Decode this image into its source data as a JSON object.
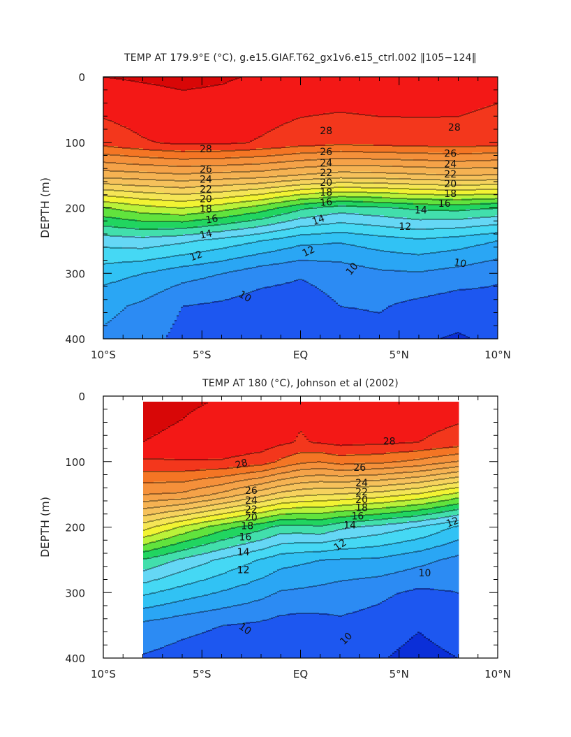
{
  "chart_data": [
    {
      "type": "heatmap",
      "subtype": "filled-contour",
      "title": "TEMP AT 179.9°E (°C), g.e15.GIAF.T62_gx1v6.e15_ctrl.002 ‖105−124‖",
      "xlabel": "",
      "ylabel": "DEPTH (m)",
      "xlim": [
        -10,
        10
      ],
      "ylim": [
        400,
        0
      ],
      "x_ticks": [
        "10°S",
        "5°S",
        "EQ",
        "5°N",
        "10°N"
      ],
      "y_ticks": [
        "0",
        "100",
        "200",
        "300",
        "400"
      ],
      "contour_interval": 1,
      "data_extent": [
        -10,
        10
      ],
      "x_grid": [
        -10,
        -8,
        -6,
        -4,
        -2,
        0,
        2,
        4,
        6,
        8,
        10
      ],
      "depth_grid": [
        0,
        100,
        150,
        200,
        250,
        300,
        350,
        400
      ],
      "temperature": [
        [
          29.0,
          29.1,
          29.2,
          29.1,
          28.9,
          28.8,
          28.8,
          28.9,
          28.8,
          28.6,
          28.4
        ],
        [
          27.4,
          27.9,
          28.2,
          28.2,
          27.9,
          27.5,
          27.3,
          27.4,
          27.5,
          27.6,
          27.4
        ],
        [
          23.4,
          23.6,
          23.8,
          23.6,
          23.4,
          22.9,
          22.5,
          22.6,
          22.8,
          23.0,
          22.9
        ],
        [
          17.9,
          18.6,
          19.0,
          18.4,
          17.5,
          16.2,
          15.5,
          15.8,
          16.2,
          16.3,
          16.0
        ],
        [
          14.4,
          14.6,
          14.2,
          13.6,
          13.0,
          12.3,
          12.1,
          12.5,
          12.8,
          12.5,
          12.0
        ],
        [
          12.4,
          12.0,
          11.4,
          11.0,
          10.4,
          10.1,
          10.4,
          10.8,
          10.9,
          10.6,
          10.2
        ],
        [
          11.3,
          10.8,
          10.0,
          9.8,
          9.5,
          9.5,
          10.0,
          10.1,
          9.7,
          9.4,
          9.6
        ],
        [
          10.8,
          10.4,
          9.7,
          9.5,
          9.3,
          9.2,
          9.4,
          9.6,
          9.1,
          8.9,
          9.2
        ]
      ],
      "labels": [
        {
          "text": "28",
          "x": -4.8,
          "y": 110,
          "rot": 0
        },
        {
          "text": "26",
          "x": -4.8,
          "y": 141,
          "rot": 0
        },
        {
          "text": "24",
          "x": -4.8,
          "y": 156,
          "rot": 0
        },
        {
          "text": "22",
          "x": -4.8,
          "y": 171,
          "rot": 0
        },
        {
          "text": "20",
          "x": -4.8,
          "y": 186,
          "rot": 0
        },
        {
          "text": "18",
          "x": -4.8,
          "y": 201,
          "rot": 0
        },
        {
          "text": "16",
          "x": -4.5,
          "y": 217,
          "rot": -10
        },
        {
          "text": "14",
          "x": -4.8,
          "y": 240,
          "rot": -12
        },
        {
          "text": "12",
          "x": -5.3,
          "y": 273,
          "rot": -20
        },
        {
          "text": "10",
          "x": -2.8,
          "y": 335,
          "rot": 30
        },
        {
          "text": "28",
          "x": 1.3,
          "y": 82,
          "rot": 0
        },
        {
          "text": "26",
          "x": 1.3,
          "y": 114,
          "rot": 0
        },
        {
          "text": "24",
          "x": 1.3,
          "y": 131,
          "rot": 0
        },
        {
          "text": "22",
          "x": 1.3,
          "y": 146,
          "rot": 0
        },
        {
          "text": "20",
          "x": 1.3,
          "y": 161,
          "rot": 0
        },
        {
          "text": "18",
          "x": 1.3,
          "y": 176,
          "rot": 0
        },
        {
          "text": "16",
          "x": 1.3,
          "y": 191,
          "rot": -5
        },
        {
          "text": "14",
          "x": 0.9,
          "y": 218,
          "rot": -20
        },
        {
          "text": "12",
          "x": 0.4,
          "y": 266,
          "rot": -25
        },
        {
          "text": "10",
          "x": 2.6,
          "y": 293,
          "rot": -50
        },
        {
          "text": "28",
          "x": 7.8,
          "y": 77,
          "rot": 0
        },
        {
          "text": "26",
          "x": 7.6,
          "y": 117,
          "rot": 0
        },
        {
          "text": "24",
          "x": 7.6,
          "y": 133,
          "rot": 0
        },
        {
          "text": "22",
          "x": 7.6,
          "y": 148,
          "rot": 0
        },
        {
          "text": "20",
          "x": 7.6,
          "y": 163,
          "rot": 0
        },
        {
          "text": "18",
          "x": 7.6,
          "y": 178,
          "rot": 0
        },
        {
          "text": "16",
          "x": 7.3,
          "y": 193,
          "rot": 0
        },
        {
          "text": "14",
          "x": 6.1,
          "y": 203,
          "rot": 0
        },
        {
          "text": "12",
          "x": 5.3,
          "y": 228,
          "rot": 0
        },
        {
          "text": "10",
          "x": 8.1,
          "y": 284,
          "rot": 10
        }
      ]
    },
    {
      "type": "heatmap",
      "subtype": "filled-contour",
      "title": "TEMP AT 180 (°C), Johnson et al (2002)",
      "xlabel": "",
      "ylabel": "DEPTH (m)",
      "xlim": [
        -10,
        10
      ],
      "ylim": [
        400,
        0
      ],
      "x_ticks": [
        "10°S",
        "5°S",
        "EQ",
        "5°N",
        "10°N"
      ],
      "y_ticks": [
        "0",
        "100",
        "200",
        "300",
        "400"
      ],
      "contour_interval": 1,
      "data_extent": [
        -8,
        8
      ],
      "depth_top": 8,
      "x_grid": [
        -8,
        -6,
        -4,
        -2,
        -1,
        0,
        1,
        2,
        4,
        6,
        8
      ],
      "depth_grid": [
        0,
        70,
        100,
        150,
        200,
        250,
        300,
        350,
        400
      ],
      "temperature": [
        [
          29.2,
          29.1,
          29.0,
          28.8,
          28.6,
          28.3,
          28.6,
          28.8,
          28.8,
          28.7,
          28.6
        ],
        [
          29.0,
          28.9,
          28.7,
          28.5,
          28.2,
          27.9,
          28.1,
          28.3,
          28.2,
          28.0,
          27.6
        ],
        [
          27.8,
          27.9,
          27.9,
          27.5,
          26.8,
          26.2,
          26.0,
          26.4,
          26.2,
          25.7,
          24.9
        ],
        [
          25.0,
          24.8,
          23.7,
          22.3,
          21.6,
          21.2,
          21.0,
          20.9,
          20.5,
          19.8,
          18.6
        ],
        [
          20.4,
          18.8,
          17.4,
          16.3,
          15.6,
          15.6,
          15.8,
          15.2,
          14.6,
          13.9,
          12.8
        ],
        [
          15.9,
          14.8,
          13.8,
          12.9,
          12.4,
          12.2,
          12.0,
          11.9,
          11.8,
          11.3,
          10.7
        ],
        [
          13.2,
          12.5,
          11.9,
          11.3,
          10.9,
          10.8,
          10.7,
          10.5,
          10.2,
          9.8,
          10.0
        ],
        [
          10.7,
          10.3,
          10.0,
          9.8,
          9.6,
          9.5,
          9.6,
          9.8,
          9.6,
          9.1,
          9.6
        ],
        [
          9.9,
          9.6,
          9.4,
          9.3,
          9.2,
          9.1,
          9.2,
          9.4,
          9.1,
          8.6,
          9.0
        ]
      ],
      "labels": [
        {
          "text": "28",
          "x": -3.0,
          "y": 103,
          "rot": -15
        },
        {
          "text": "26",
          "x": -2.5,
          "y": 144,
          "rot": 0
        },
        {
          "text": "24",
          "x": -2.5,
          "y": 159,
          "rot": 0
        },
        {
          "text": "22",
          "x": -2.5,
          "y": 173,
          "rot": 0
        },
        {
          "text": "20",
          "x": -2.5,
          "y": 185,
          "rot": 0
        },
        {
          "text": "18",
          "x": -2.7,
          "y": 198,
          "rot": 0
        },
        {
          "text": "16",
          "x": -2.8,
          "y": 215,
          "rot": 0
        },
        {
          "text": "14",
          "x": -2.9,
          "y": 238,
          "rot": 0
        },
        {
          "text": "12",
          "x": -2.9,
          "y": 265,
          "rot": 0
        },
        {
          "text": "10",
          "x": -2.8,
          "y": 355,
          "rot": 35
        },
        {
          "text": "28",
          "x": 4.5,
          "y": 69,
          "rot": 0
        },
        {
          "text": "26",
          "x": 3.0,
          "y": 109,
          "rot": 0
        },
        {
          "text": "24",
          "x": 3.1,
          "y": 132,
          "rot": 0
        },
        {
          "text": "22",
          "x": 3.1,
          "y": 146,
          "rot": 0
        },
        {
          "text": "20",
          "x": 3.1,
          "y": 158,
          "rot": 0
        },
        {
          "text": "18",
          "x": 3.1,
          "y": 170,
          "rot": 0
        },
        {
          "text": "16",
          "x": 2.9,
          "y": 183,
          "rot": 0
        },
        {
          "text": "14",
          "x": 2.5,
          "y": 197,
          "rot": 0
        },
        {
          "text": "12",
          "x": 2.0,
          "y": 227,
          "rot": -35
        },
        {
          "text": "10",
          "x": 2.3,
          "y": 370,
          "rot": -45
        },
        {
          "text": "12",
          "x": 7.7,
          "y": 192,
          "rot": -20
        },
        {
          "text": "10",
          "x": 6.3,
          "y": 270,
          "rot": 0
        }
      ]
    }
  ]
}
